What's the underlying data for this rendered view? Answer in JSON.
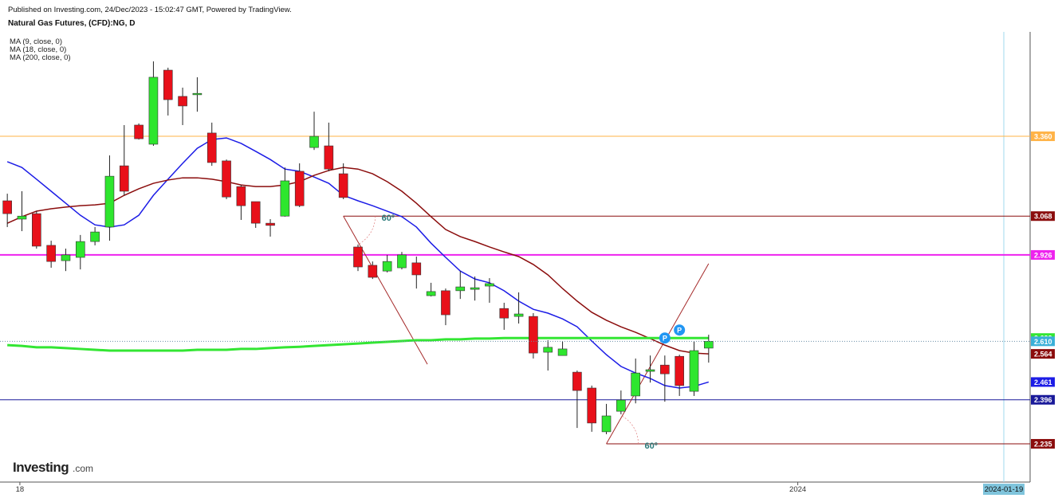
{
  "chart_data": {
    "type": "candlestick",
    "published": "Published on Investing.com, 24/Dec/2023 - 15:02:47 GMT, Powered by TradingView.",
    "title": "Natural Gas Futures, (CFD):NG, D",
    "logo": {
      "main": "Investing",
      "suffix": ".com"
    },
    "up_color": "#2ee62e",
    "down_color": "#e8101a",
    "open": [
      3.124,
      3.057,
      3.077,
      2.961,
      2.905,
      2.917,
      2.975,
      3.028,
      3.252,
      3.401,
      3.331,
      3.602,
      3.506,
      3.512,
      3.372,
      3.27,
      3.176,
      3.121,
      3.042,
      3.068,
      3.232,
      3.319,
      3.325,
      3.223,
      2.955,
      2.888,
      2.867,
      2.879,
      2.897,
      2.777,
      2.795,
      2.795,
      2.8,
      2.812,
      2.73,
      2.701,
      2.701,
      2.57,
      2.558,
      2.497,
      2.439,
      2.279,
      2.354,
      2.41,
      2.5,
      2.523,
      2.555,
      2.427,
      2.585
    ],
    "high": [
      3.15,
      3.159,
      3.086,
      2.978,
      2.949,
      2.999,
      3.028,
      3.29,
      3.401,
      3.407,
      3.634,
      3.611,
      3.538,
      3.576,
      3.41,
      3.275,
      3.182,
      3.121,
      3.057,
      3.246,
      3.261,
      3.45,
      3.41,
      3.261,
      2.964,
      2.902,
      2.926,
      2.937,
      2.92,
      2.824,
      2.803,
      2.867,
      2.847,
      2.841,
      2.751,
      2.789,
      2.713,
      2.614,
      2.611,
      2.503,
      2.448,
      2.381,
      2.43,
      2.547,
      2.558,
      2.558,
      2.561,
      2.611,
      2.634
    ],
    "low": [
      3.028,
      3.013,
      2.949,
      2.879,
      2.867,
      2.873,
      2.961,
      2.978,
      3.144,
      3.348,
      3.325,
      3.436,
      3.401,
      3.45,
      3.252,
      3.13,
      3.054,
      3.025,
      2.993,
      3.066,
      3.101,
      3.31,
      3.232,
      3.13,
      2.867,
      2.838,
      2.862,
      2.873,
      2.803,
      2.774,
      2.669,
      2.765,
      2.759,
      2.751,
      2.652,
      2.675,
      2.547,
      2.503,
      2.558,
      2.293,
      2.279,
      2.27,
      2.343,
      2.383,
      2.459,
      2.389,
      2.41,
      2.41,
      2.532
    ],
    "close": [
      3.077,
      3.068,
      2.958,
      2.902,
      2.926,
      2.975,
      3.01,
      3.214,
      3.159,
      3.351,
      3.576,
      3.494,
      3.471,
      3.517,
      3.264,
      3.138,
      3.106,
      3.042,
      3.034,
      3.197,
      3.106,
      3.36,
      3.24,
      3.136,
      2.882,
      2.844,
      2.902,
      2.926,
      2.853,
      2.792,
      2.707,
      2.809,
      2.806,
      2.821,
      2.695,
      2.71,
      2.567,
      2.588,
      2.582,
      2.43,
      2.311,
      2.337,
      2.395,
      2.494,
      2.506,
      2.491,
      2.448,
      2.576,
      2.61
    ],
    "series": [
      {
        "name": "MA (9, close, 0)",
        "color": "#1c1ce6",
        "width": 1.5,
        "values": [
          3.267,
          3.246,
          3.203,
          3.159,
          3.115,
          3.071,
          3.036,
          3.028,
          3.036,
          3.071,
          3.144,
          3.203,
          3.261,
          3.316,
          3.348,
          3.354,
          3.334,
          3.305,
          3.275,
          3.24,
          3.232,
          3.211,
          3.188,
          3.144,
          3.124,
          3.106,
          3.086,
          3.066,
          3.028,
          2.969,
          2.917,
          2.867,
          2.838,
          2.824,
          2.795,
          2.757,
          2.727,
          2.713,
          2.692,
          2.663,
          2.611,
          2.561,
          2.518,
          2.494,
          2.474,
          2.448,
          2.439,
          2.445,
          2.461
        ]
      },
      {
        "name": "MA (18, close, 0)",
        "color": "#8b0d0d",
        "width": 1.5,
        "values": [
          3.042,
          3.066,
          3.086,
          3.095,
          3.101,
          3.106,
          3.109,
          3.115,
          3.144,
          3.168,
          3.188,
          3.2,
          3.208,
          3.208,
          3.203,
          3.194,
          3.182,
          3.176,
          3.176,
          3.182,
          3.194,
          3.217,
          3.235,
          3.246,
          3.24,
          3.223,
          3.194,
          3.159,
          3.115,
          3.066,
          3.019,
          2.993,
          2.975,
          2.955,
          2.937,
          2.92,
          2.891,
          2.853,
          2.803,
          2.757,
          2.716,
          2.687,
          2.663,
          2.643,
          2.62,
          2.596,
          2.576,
          2.567,
          2.564
        ]
      },
      {
        "name": "MA (200, close, 0)",
        "color": "#33e633",
        "width": 3,
        "values": [
          2.596,
          2.593,
          2.588,
          2.588,
          2.585,
          2.582,
          2.579,
          2.576,
          2.576,
          2.576,
          2.576,
          2.576,
          2.576,
          2.579,
          2.579,
          2.579,
          2.582,
          2.582,
          2.585,
          2.588,
          2.59,
          2.593,
          2.596,
          2.599,
          2.602,
          2.605,
          2.608,
          2.611,
          2.614,
          2.614,
          2.617,
          2.617,
          2.62,
          2.62,
          2.622,
          2.622,
          2.622,
          2.622,
          2.622,
          2.622,
          2.622,
          2.622,
          2.622,
          2.622,
          2.622,
          2.622,
          2.622,
          2.622,
          2.622
        ]
      }
    ],
    "levels": [
      {
        "value": 3.36,
        "label": "3.360",
        "color": "#ffb347",
        "from": -0.5,
        "width": 1
      },
      {
        "value": 3.068,
        "label": "3.068",
        "color": "#8b0d0d",
        "from": 23,
        "width": 1
      },
      {
        "value": 2.926,
        "label": "2.926",
        "color": "#ee22ee",
        "from": -0.5,
        "width": 2
      },
      {
        "value": 2.396,
        "label": "2.396",
        "color": "#1a1a9a",
        "from": -0.5,
        "width": 1
      },
      {
        "value": 2.235,
        "label": "2.235",
        "color": "#8b0d0d",
        "from": 41,
        "width": 1
      }
    ],
    "last_labels": [
      {
        "value": 2.622,
        "label": "2.622",
        "color": "#33e633",
        "text_color": "#ffffff"
      },
      {
        "value": 2.61,
        "label": "2.610",
        "color": "#3ab0d8",
        "text_color": "#ffffff"
      },
      {
        "value": 2.564,
        "label": "2.564",
        "color": "#8b0d0d",
        "text_color": "#ffffff"
      },
      {
        "value": 2.461,
        "label": "2.461",
        "color": "#1c1ce6",
        "text_color": "#ffffff"
      }
    ],
    "trendlines": [
      {
        "x": [
          23,
          28.75
        ],
        "y": [
          3.068,
          2.526
        ],
        "label": "60º",
        "color": "#a52a2a"
      },
      {
        "x": [
          41,
          48
        ],
        "y": [
          2.235,
          2.894
        ],
        "label": "60º",
        "color": "#a52a2a"
      }
    ],
    "events": [
      {
        "x": 45,
        "label": "P"
      },
      {
        "x": 46,
        "label": "P"
      }
    ],
    "xlim": [
      -0.5,
      70
    ],
    "ylim": [
      2.095,
      3.742
    ],
    "xticks": [
      {
        "value": 0.86,
        "label": "18"
      },
      {
        "value": 54.1,
        "label": "2024"
      }
    ],
    "highlight_tick": {
      "value": 68.2,
      "label": "2024-01-19"
    }
  }
}
